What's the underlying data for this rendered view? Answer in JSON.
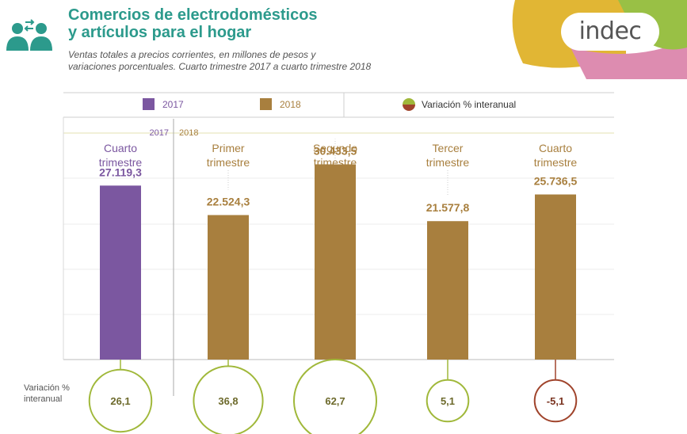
{
  "header": {
    "title_line1": "Comercios de electrodomésticos",
    "title_line2": "y artículos para el hogar",
    "subtitle_line1": "Ventas totales a precios corrientes, en millones de pesos y",
    "subtitle_line2": "variaciones porcentuales. Cuarto trimestre 2017 a cuarto trimestre 2018",
    "logo_text": "indec"
  },
  "legend": {
    "y2017": "2017",
    "y2018": "2018",
    "variation": "Variación % interanual"
  },
  "year_labels": {
    "y2017": "2017",
    "y2018": "2018"
  },
  "variation_label_line1": "Variación %",
  "variation_label_line2": "interanual",
  "colors": {
    "teal": "#2c9a8c",
    "purple": "#7b57a0",
    "gold": "#a87f3e",
    "green": "#a0b83a",
    "negative": "#a0442c",
    "logo_yellow": "#e1b634",
    "logo_pink": "#dd8cb0",
    "logo_green": "#99c045"
  },
  "chart_data": {
    "type": "bar",
    "categories": [
      [
        "Cuarto",
        "trimestre"
      ],
      [
        "Primer",
        "trimestre"
      ],
      [
        "Segundo",
        "trimestre"
      ],
      [
        "Tercer",
        "trimestre"
      ],
      [
        "Cuarto",
        "trimestre"
      ]
    ],
    "years": [
      "2017",
      "2018",
      "2018",
      "2018",
      "2018"
    ],
    "values": [
      27119.3,
      22524.3,
      30433.5,
      21577.8,
      25736.5
    ],
    "value_labels": [
      "27.119,3",
      "22.524,3",
      "30.433,5",
      "21.577,8",
      "25.736,5"
    ],
    "variation": [
      26.1,
      36.8,
      62.7,
      5.1,
      -5.1
    ],
    "variation_labels": [
      "26,1",
      "36,8",
      "62,7",
      "5,1",
      "-5,1"
    ],
    "ylim": [
      0,
      40000
    ],
    "series": [
      {
        "name": "2017"
      },
      {
        "name": "2018"
      }
    ]
  }
}
